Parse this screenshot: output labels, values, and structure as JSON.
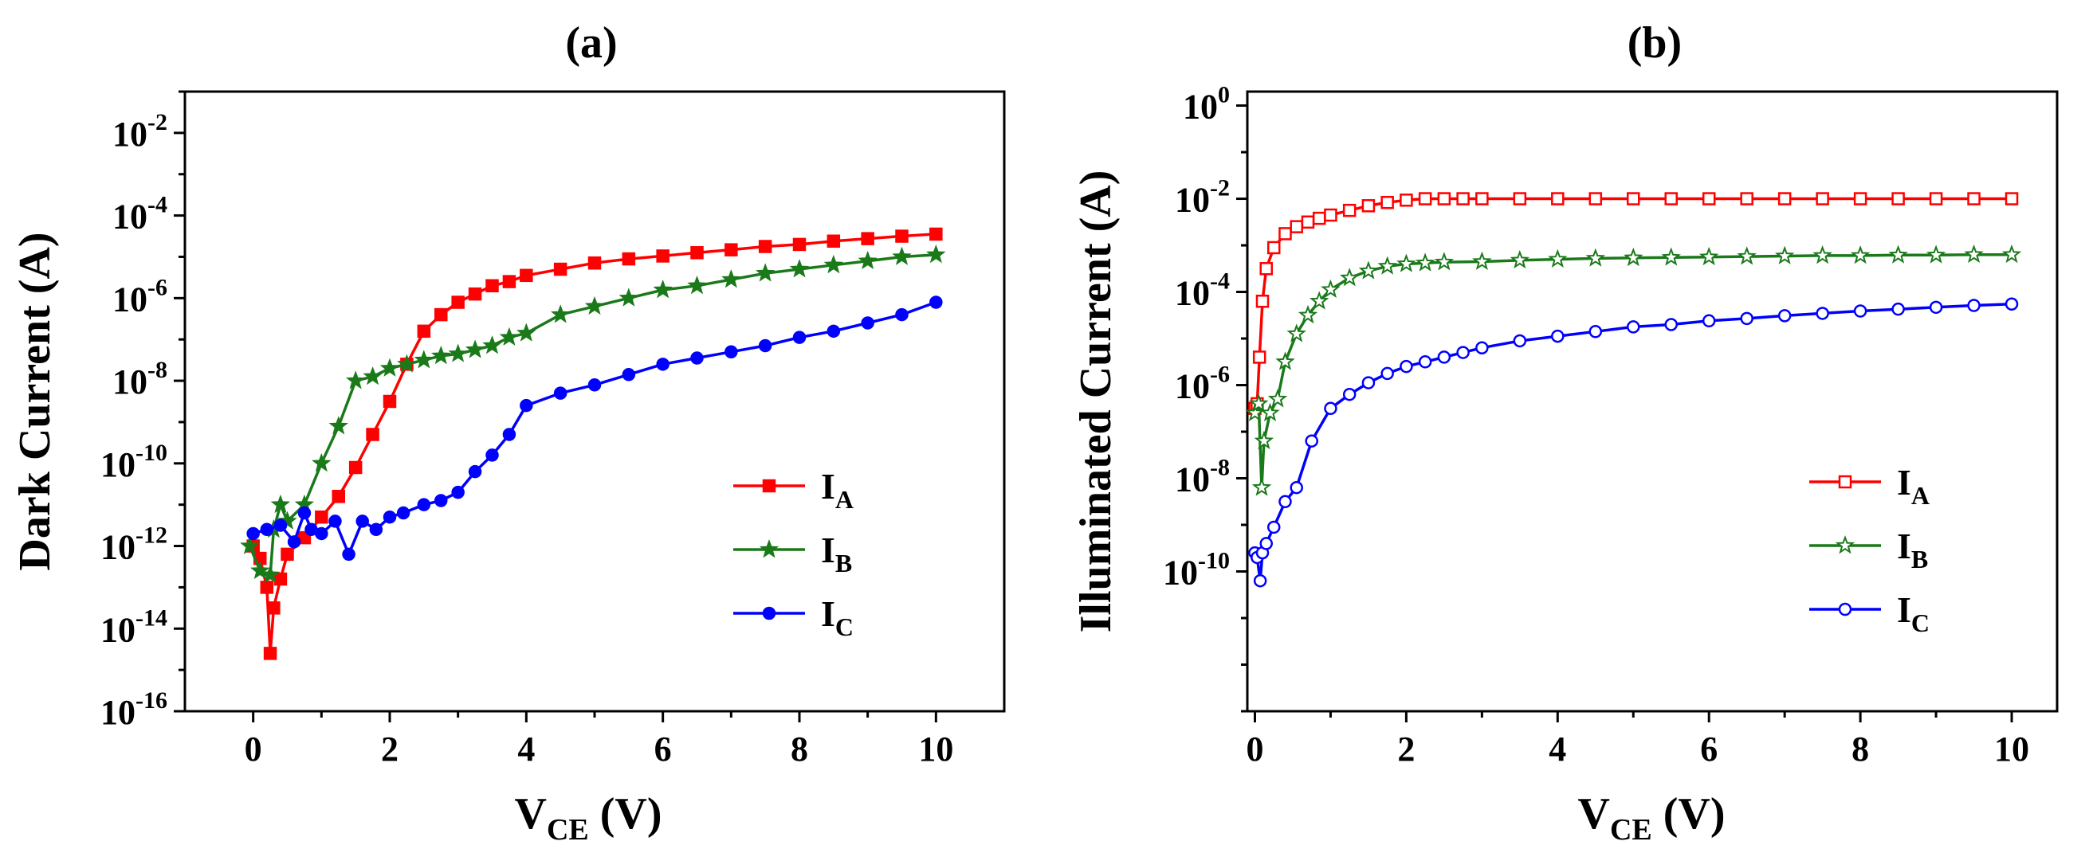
{
  "chart_data": [
    {
      "type": "line",
      "panel_label": "(a)",
      "xlabel_main": "V",
      "xlabel_sub": "CE",
      "xlabel_unit": " (V)",
      "ylabel": "Dark Current (A)",
      "y_scale": "log",
      "xlim": [
        -1,
        11
      ],
      "ylim_exp": [
        -16,
        -1
      ],
      "x_ticks": [
        "0",
        "2",
        "4",
        "6",
        "8",
        "10"
      ],
      "x_tick_values": [
        0,
        2,
        4,
        6,
        8,
        10
      ],
      "y_tick_exps": [
        -16,
        -14,
        -12,
        -10,
        -8,
        -6,
        -4,
        -2
      ],
      "y_tick_base": "10",
      "y_tick_sups": [
        "-16",
        "-14",
        "-12",
        "-10",
        "-8",
        "-6",
        "-4",
        "-2"
      ],
      "legend_position": "right",
      "series": [
        {
          "name_main": "I",
          "name_sub": "A",
          "color": "#ff0000",
          "marker": "square-filled",
          "x": [
            0.0,
            0.1,
            0.2,
            0.25,
            0.3,
            0.4,
            0.5,
            0.75,
            1.0,
            1.25,
            1.5,
            1.75,
            2.0,
            2.25,
            2.5,
            2.75,
            3.0,
            3.25,
            3.5,
            3.75,
            4.0,
            4.5,
            5.0,
            5.5,
            6.0,
            6.5,
            7.0,
            7.5,
            8.0,
            8.5,
            9.0,
            9.5,
            10.0
          ],
          "y_exp": [
            -12.0,
            -12.3,
            -13.0,
            -14.6,
            -13.5,
            -12.8,
            -12.2,
            -11.8,
            -11.3,
            -10.8,
            -10.1,
            -9.3,
            -8.5,
            -7.6,
            -6.8,
            -6.4,
            -6.1,
            -5.9,
            -5.7,
            -5.6,
            -5.45,
            -5.3,
            -5.15,
            -5.05,
            -4.98,
            -4.9,
            -4.83,
            -4.75,
            -4.7,
            -4.62,
            -4.56,
            -4.5,
            -4.45
          ]
        },
        {
          "name_main": "I",
          "name_sub": "B",
          "color": "#1a7a1a",
          "marker": "star-filled",
          "x": [
            -0.05,
            0.1,
            0.25,
            0.3,
            0.4,
            0.5,
            0.75,
            1.0,
            1.25,
            1.5,
            1.75,
            2.0,
            2.25,
            2.5,
            2.75,
            3.0,
            3.25,
            3.5,
            3.75,
            4.0,
            4.5,
            5.0,
            5.5,
            6.0,
            6.5,
            7.0,
            7.5,
            8.0,
            8.5,
            9.0,
            9.5,
            10.0
          ],
          "y_exp": [
            -12.0,
            -12.6,
            -12.7,
            -11.6,
            -11.0,
            -11.4,
            -11.0,
            -10.0,
            -9.1,
            -8.0,
            -7.9,
            -7.7,
            -7.6,
            -7.5,
            -7.4,
            -7.35,
            -7.25,
            -7.15,
            -6.95,
            -6.85,
            -6.4,
            -6.2,
            -6.0,
            -5.8,
            -5.7,
            -5.55,
            -5.4,
            -5.3,
            -5.2,
            -5.1,
            -5.0,
            -4.95
          ]
        },
        {
          "name_main": "I",
          "name_sub": "C",
          "color": "#0000ff",
          "marker": "circle-filled",
          "x": [
            0.0,
            0.2,
            0.4,
            0.6,
            0.75,
            0.85,
            1.0,
            1.2,
            1.4,
            1.6,
            1.8,
            2.0,
            2.2,
            2.5,
            2.75,
            3.0,
            3.25,
            3.5,
            3.75,
            4.0,
            4.5,
            5.0,
            5.5,
            6.0,
            6.5,
            7.0,
            7.5,
            8.0,
            8.5,
            9.0,
            9.5,
            10.0
          ],
          "y_exp": [
            -11.7,
            -11.6,
            -11.5,
            -11.9,
            -11.2,
            -11.6,
            -11.7,
            -11.4,
            -12.2,
            -11.4,
            -11.6,
            -11.3,
            -11.2,
            -11.0,
            -10.9,
            -10.7,
            -10.2,
            -9.8,
            -9.3,
            -8.6,
            -8.3,
            -8.1,
            -7.85,
            -7.6,
            -7.45,
            -7.3,
            -7.15,
            -6.95,
            -6.8,
            -6.6,
            -6.4,
            -6.1
          ]
        }
      ]
    },
    {
      "type": "line",
      "panel_label": "(b)",
      "xlabel_main": "V",
      "xlabel_sub": "CE",
      "xlabel_unit": " (V)",
      "ylabel": "Illuminated Current (A)",
      "y_scale": "log",
      "xlim": [
        -0.1,
        10.6
      ],
      "ylim_exp": [
        -13,
        0.3
      ],
      "x_ticks": [
        "0",
        "2",
        "4",
        "6",
        "8",
        "10"
      ],
      "x_tick_values": [
        0,
        2,
        4,
        6,
        8,
        10
      ],
      "y_tick_exps": [
        -10,
        -8,
        -6,
        -4,
        -2,
        0
      ],
      "y_tick_base": "10",
      "y_tick_sups": [
        "-10",
        "-8",
        "-6",
        "-4",
        "-2",
        "0"
      ],
      "legend_position": "right",
      "series": [
        {
          "name_main": "I",
          "name_sub": "A",
          "color": "#ff0000",
          "marker": "square-open",
          "x": [
            0.0,
            0.03,
            0.06,
            0.1,
            0.15,
            0.25,
            0.4,
            0.55,
            0.7,
            0.85,
            1.0,
            1.25,
            1.5,
            1.75,
            2.0,
            2.25,
            2.5,
            2.75,
            3.0,
            3.5,
            4.0,
            4.5,
            5.0,
            5.5,
            6.0,
            6.5,
            7.0,
            7.5,
            8.0,
            8.5,
            9.0,
            9.5,
            10.0
          ],
          "y_exp": [
            -6.5,
            -6.4,
            -5.4,
            -4.2,
            -3.5,
            -3.05,
            -2.75,
            -2.6,
            -2.5,
            -2.42,
            -2.35,
            -2.25,
            -2.15,
            -2.08,
            -2.03,
            -2.0,
            -2.0,
            -2.0,
            -2.0,
            -2.0,
            -2.0,
            -2.0,
            -2.0,
            -2.0,
            -2.0,
            -2.0,
            -2.0,
            -2.0,
            -2.0,
            -2.0,
            -2.0,
            -2.0,
            -2.0
          ]
        },
        {
          "name_main": "I",
          "name_sub": "B",
          "color": "#1a7a1a",
          "marker": "star-open",
          "x": [
            0.0,
            0.05,
            0.09,
            0.12,
            0.2,
            0.3,
            0.4,
            0.55,
            0.7,
            0.85,
            1.0,
            1.25,
            1.5,
            1.75,
            2.0,
            2.25,
            2.5,
            3.0,
            3.5,
            4.0,
            4.5,
            5.0,
            5.5,
            6.0,
            6.5,
            7.0,
            7.5,
            8.0,
            8.5,
            9.0,
            9.5,
            10.0
          ],
          "y_exp": [
            -6.6,
            -6.4,
            -8.2,
            -7.2,
            -6.6,
            -6.3,
            -5.5,
            -4.9,
            -4.5,
            -4.2,
            -3.95,
            -3.7,
            -3.55,
            -3.45,
            -3.4,
            -3.38,
            -3.36,
            -3.35,
            -3.32,
            -3.3,
            -3.28,
            -3.27,
            -3.26,
            -3.25,
            -3.24,
            -3.23,
            -3.22,
            -3.22,
            -3.21,
            -3.21,
            -3.2,
            -3.2
          ]
        },
        {
          "name_main": "I",
          "name_sub": "C",
          "color": "#0000ff",
          "marker": "circle-open",
          "x": [
            0.0,
            0.03,
            0.07,
            0.1,
            0.15,
            0.25,
            0.4,
            0.55,
            0.75,
            1.0,
            1.25,
            1.5,
            1.75,
            2.0,
            2.25,
            2.5,
            2.75,
            3.0,
            3.5,
            4.0,
            4.5,
            5.0,
            5.5,
            6.0,
            6.5,
            7.0,
            7.5,
            8.0,
            8.5,
            9.0,
            9.5,
            10.0
          ],
          "y_exp": [
            -9.6,
            -9.7,
            -10.2,
            -9.6,
            -9.4,
            -9.05,
            -8.5,
            -8.2,
            -7.2,
            -6.5,
            -6.2,
            -5.95,
            -5.75,
            -5.6,
            -5.5,
            -5.4,
            -5.3,
            -5.2,
            -5.05,
            -4.95,
            -4.85,
            -4.75,
            -4.7,
            -4.62,
            -4.57,
            -4.51,
            -4.46,
            -4.41,
            -4.37,
            -4.33,
            -4.29,
            -4.26
          ]
        }
      ]
    }
  ]
}
